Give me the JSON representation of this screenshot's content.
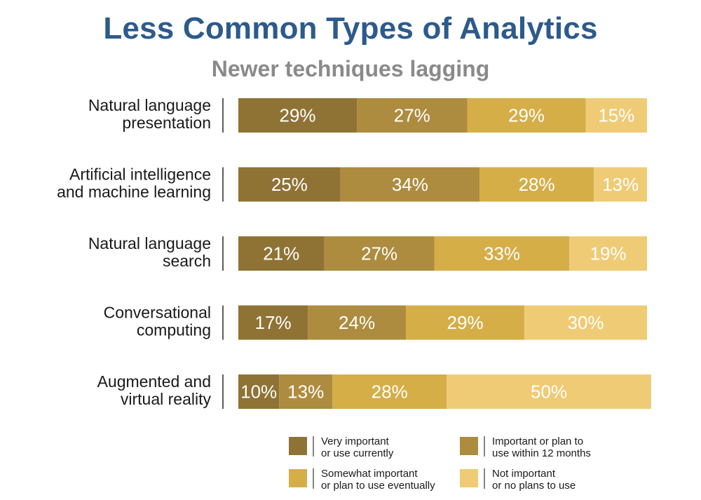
{
  "chart_data": {
    "type": "bar",
    "orientation": "horizontal",
    "stacked": true,
    "title": "Less Common Types of Analytics",
    "subtitle": "Newer techniques lagging",
    "categories": [
      [
        "Natural language",
        "presentation"
      ],
      [
        "Artificial intelligence",
        "and machine learning"
      ],
      [
        "Natural language",
        "search"
      ],
      [
        "Conversational",
        "computing"
      ],
      [
        "Augmented and",
        "virtual reality"
      ]
    ],
    "series": [
      {
        "name": [
          "Very important",
          "or use currently"
        ],
        "color": "#8f7335",
        "values": [
          29,
          25,
          21,
          17,
          10
        ]
      },
      {
        "name": [
          "Important or plan to",
          "use within 12 months"
        ],
        "color": "#ad8c3f",
        "values": [
          27,
          34,
          27,
          24,
          13
        ]
      },
      {
        "name": [
          "Somewhat important",
          "or plan to use eventually"
        ],
        "color": "#d6ae48",
        "values": [
          29,
          28,
          33,
          29,
          28
        ]
      },
      {
        "name": [
          "Not important",
          "or no plans to use"
        ],
        "color": "#f0cb75",
        "values": [
          15,
          13,
          19,
          30,
          50
        ]
      }
    ],
    "value_suffix": "%",
    "legend_position": "bottom-right"
  }
}
